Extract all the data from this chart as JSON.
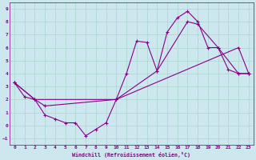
{
  "xlabel": "Windchill (Refroidissement éolien,°C)",
  "ylabel": "",
  "background_color": "#cce8ee",
  "grid_color": "#aad4cc",
  "line_color": "#880088",
  "xlim": [
    -0.5,
    23.5
  ],
  "ylim": [
    -1.5,
    9.5
  ],
  "xticks": [
    0,
    1,
    2,
    3,
    4,
    5,
    6,
    7,
    8,
    9,
    10,
    11,
    12,
    13,
    14,
    15,
    16,
    17,
    18,
    19,
    20,
    21,
    22,
    23
  ],
  "yticks": [
    -1,
    0,
    1,
    2,
    3,
    4,
    5,
    6,
    7,
    8,
    9
  ],
  "series1": [
    [
      0,
      3.3
    ],
    [
      1,
      2.2
    ],
    [
      2,
      2.0
    ],
    [
      3,
      0.8
    ],
    [
      4,
      0.5
    ],
    [
      5,
      0.2
    ],
    [
      6,
      0.2
    ],
    [
      7,
      -0.8
    ],
    [
      8,
      -0.3
    ],
    [
      9,
      0.2
    ],
    [
      10,
      2.0
    ],
    [
      11,
      4.0
    ],
    [
      12,
      6.5
    ],
    [
      13,
      6.4
    ],
    [
      14,
      4.2
    ],
    [
      15,
      7.2
    ],
    [
      16,
      8.3
    ],
    [
      17,
      8.8
    ],
    [
      18,
      8.0
    ],
    [
      19,
      6.0
    ],
    [
      20,
      6.0
    ],
    [
      21,
      4.3
    ],
    [
      22,
      4.0
    ],
    [
      23,
      4.0
    ]
  ],
  "series2": [
    [
      0,
      3.3
    ],
    [
      2,
      2.0
    ],
    [
      3,
      1.5
    ],
    [
      10,
      2.0
    ],
    [
      14,
      4.2
    ],
    [
      17,
      8.0
    ],
    [
      18,
      7.8
    ],
    [
      20,
      6.0
    ],
    [
      22,
      4.0
    ],
    [
      23,
      4.0
    ]
  ],
  "series3": [
    [
      0,
      3.3
    ],
    [
      2,
      2.0
    ],
    [
      10,
      2.0
    ],
    [
      22,
      6.0
    ],
    [
      23,
      4.0
    ]
  ]
}
